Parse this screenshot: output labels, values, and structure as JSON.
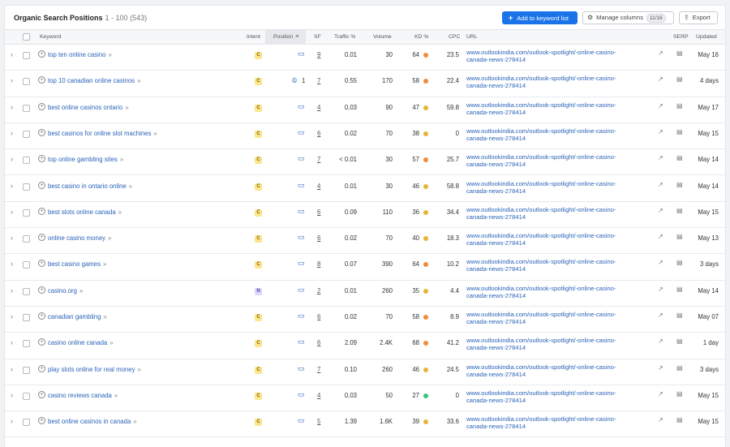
{
  "header": {
    "title": "Organic Search Positions",
    "range": "1 - 100 (543)",
    "add_button": "Add to keyword list",
    "manage_button": "Manage columns",
    "manage_count": "11/16",
    "export_button": "Export"
  },
  "columns": {
    "keyword": "Keyword",
    "intent": "Intent",
    "position": "Position",
    "sf": "SF",
    "traffic": "Traffic %",
    "volume": "Volume",
    "kd": "KD %",
    "cpc": "CPC",
    "url": "URL",
    "serp": "SERP",
    "updated": "Updated"
  },
  "kd_colors": {
    "orange": "#f08c3c",
    "yellow": "#e8b534",
    "green": "#3ac47d"
  },
  "rows": [
    {
      "keyword": "top ten online casino",
      "intent": "C",
      "pos_type": "serp",
      "position": "",
      "sf": "9",
      "traffic": "0.01",
      "volume": "30",
      "kd": "64",
      "kd_color": "#f08c3c",
      "cpc": "23.5",
      "url1": "www.outlookindia.com/outlook-spotlight/-online-casino-",
      "url2": "canada-news-278414",
      "updated": "May 16"
    },
    {
      "keyword": "top 10 canadian online casinos",
      "intent": "C",
      "pos_type": "crown",
      "position": "1",
      "sf": "7",
      "traffic": "0.55",
      "volume": "170",
      "kd": "58",
      "kd_color": "#f08c3c",
      "cpc": "22.4",
      "url1": "www.outlookindia.com/outlook-spotlight/-online-casino-",
      "url2": "canada-news-278414",
      "updated": "4 days"
    },
    {
      "keyword": "best online casinos ontario",
      "intent": "C",
      "pos_type": "serp",
      "position": "",
      "sf": "4",
      "traffic": "0.03",
      "volume": "90",
      "kd": "47",
      "kd_color": "#e8b534",
      "cpc": "59.8",
      "url1": "www.outlookindia.com/outlook-spotlight/-online-casino-",
      "url2": "canada-news-278414",
      "updated": "May 17"
    },
    {
      "keyword": "best casinos for online slot machines",
      "intent": "C",
      "pos_type": "serp",
      "position": "",
      "sf": "6",
      "traffic": "0.02",
      "volume": "70",
      "kd": "38",
      "kd_color": "#e8b534",
      "cpc": "0",
      "url1": "www.outlookindia.com/outlook-spotlight/-online-casino-",
      "url2": "canada-news-278414",
      "updated": "May 15"
    },
    {
      "keyword": "top online gambling sites",
      "intent": "C",
      "pos_type": "serp",
      "position": "",
      "sf": "7",
      "traffic": "< 0.01",
      "volume": "30",
      "kd": "57",
      "kd_color": "#f08c3c",
      "cpc": "25.7",
      "url1": "www.outlookindia.com/outlook-spotlight/-online-casino-",
      "url2": "canada-news-278414",
      "updated": "May 14"
    },
    {
      "keyword": "best casino in ontario online",
      "intent": "C",
      "pos_type": "serp",
      "position": "",
      "sf": "4",
      "traffic": "0.01",
      "volume": "30",
      "kd": "46",
      "kd_color": "#e8b534",
      "cpc": "58.8",
      "url1": "www.outlookindia.com/outlook-spotlight/-online-casino-",
      "url2": "canada-news-278414",
      "updated": "May 14"
    },
    {
      "keyword": "best slots online canada",
      "intent": "C",
      "pos_type": "serp",
      "position": "",
      "sf": "6",
      "traffic": "0.09",
      "volume": "110",
      "kd": "36",
      "kd_color": "#e8b534",
      "cpc": "34.4",
      "url1": "www.outlookindia.com/outlook-spotlight/-online-casino-",
      "url2": "canada-news-278414",
      "updated": "May 15"
    },
    {
      "keyword": "online casino money",
      "intent": "C",
      "pos_type": "serp",
      "position": "",
      "sf": "6",
      "traffic": "0.02",
      "volume": "70",
      "kd": "40",
      "kd_color": "#e8b534",
      "cpc": "18.3",
      "url1": "www.outlookindia.com/outlook-spotlight/-online-casino-",
      "url2": "canada-news-278414",
      "updated": "May 13"
    },
    {
      "keyword": "best casino games",
      "intent": "C",
      "pos_type": "serp",
      "position": "",
      "sf": "8",
      "traffic": "0.07",
      "volume": "390",
      "kd": "64",
      "kd_color": "#f08c3c",
      "cpc": "10.2",
      "url1": "www.outlookindia.com/outlook-spotlight/-online-casino-",
      "url2": "canada-news-278414",
      "updated": "3 days"
    },
    {
      "keyword": "casino.org",
      "intent": "N",
      "pos_type": "serp",
      "position": "",
      "sf": "2",
      "traffic": "0.01",
      "volume": "260",
      "kd": "35",
      "kd_color": "#e8b534",
      "cpc": "4.4",
      "url1": "www.outlookindia.com/outlook-spotlight/-online-casino-",
      "url2": "canada-news-278414",
      "updated": "May 14"
    },
    {
      "keyword": "canadian gambling",
      "intent": "C",
      "pos_type": "serp",
      "position": "",
      "sf": "6",
      "traffic": "0.02",
      "volume": "70",
      "kd": "58",
      "kd_color": "#f08c3c",
      "cpc": "8.9",
      "url1": "www.outlookindia.com/outlook-spotlight/-online-casino-",
      "url2": "canada-news-278414",
      "updated": "May 07"
    },
    {
      "keyword": "casino online canada",
      "intent": "C",
      "pos_type": "serp",
      "position": "",
      "sf": "6",
      "traffic": "2.09",
      "volume": "2.4K",
      "kd": "68",
      "kd_color": "#f08c3c",
      "cpc": "41.2",
      "url1": "www.outlookindia.com/outlook-spotlight/-online-casino-",
      "url2": "canada-news-278414",
      "updated": "1 day"
    },
    {
      "keyword": "play slots online for real money",
      "intent": "C",
      "pos_type": "serp",
      "position": "",
      "sf": "7",
      "traffic": "0.10",
      "volume": "260",
      "kd": "46",
      "kd_color": "#e8b534",
      "cpc": "24.5",
      "url1": "www.outlookindia.com/outlook-spotlight/-online-casino-",
      "url2": "canada-news-278414",
      "updated": "3 days"
    },
    {
      "keyword": "casino reviews canada",
      "intent": "C",
      "pos_type": "serp",
      "position": "",
      "sf": "4",
      "traffic": "0.03",
      "volume": "50",
      "kd": "27",
      "kd_color": "#3ac47d",
      "cpc": "0",
      "url1": "www.outlookindia.com/outlook-spotlight/-online-casino-",
      "url2": "canada-news-278414",
      "updated": "May 15"
    },
    {
      "keyword": "best online casinos in canada",
      "intent": "C",
      "pos_type": "serp",
      "position": "",
      "sf": "5",
      "traffic": "1.39",
      "volume": "1.6K",
      "kd": "39",
      "kd_color": "#e8b534",
      "cpc": "33.6",
      "url1": "www.outlookindia.com/outlook-spotlight/-online-casino-",
      "url2": "canada-news-278414",
      "updated": "May 15"
    }
  ]
}
